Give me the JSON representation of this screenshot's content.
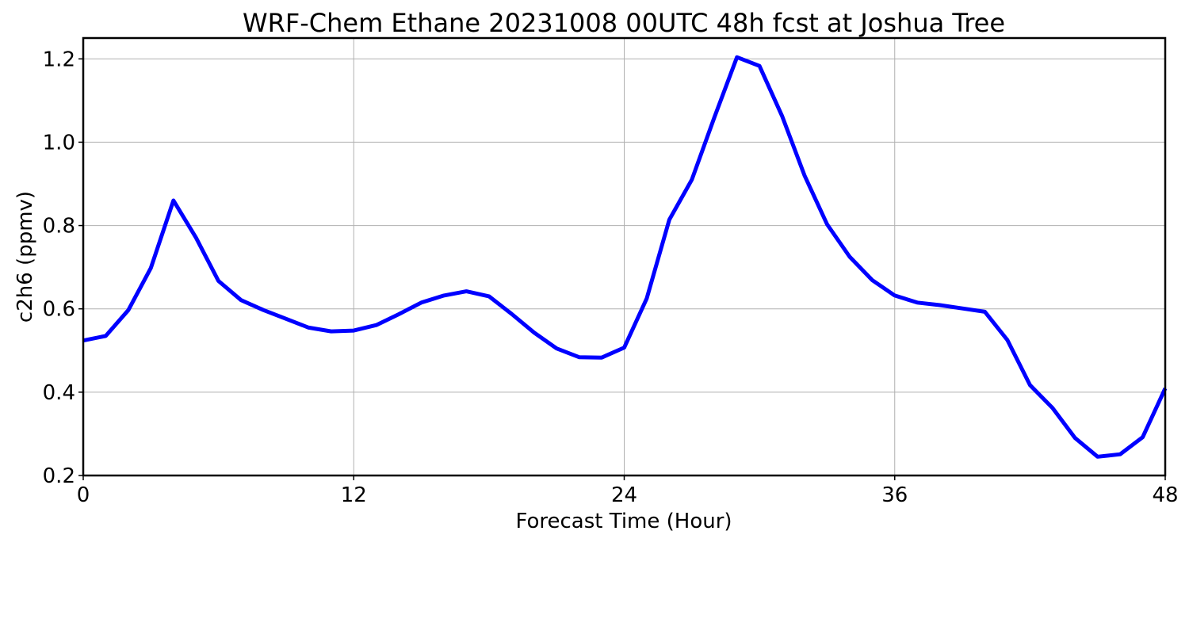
{
  "chart_data": {
    "type": "line",
    "title": "WRF-Chem Ethane  20231008 00UTC 48h fcst at Joshua Tree",
    "xlabel": "Forecast Time (Hour)",
    "ylabel": "c2h6  (ppmv)",
    "xlim": [
      0,
      48
    ],
    "ylim": [
      0.2,
      1.25
    ],
    "xticks": [
      0,
      12,
      24,
      36,
      48
    ],
    "yticks": [
      0.2,
      0.4,
      0.6,
      0.8,
      1.0,
      1.2
    ],
    "xtick_labels": [
      "0",
      "12",
      "24",
      "36",
      "48"
    ],
    "ytick_labels": [
      "0.2",
      "0.4",
      "0.6",
      "0.8",
      "1.0",
      "1.2"
    ],
    "grid": true,
    "color": "#0000ff",
    "series": [
      {
        "x": [
          0,
          1,
          2,
          3,
          4,
          5,
          6,
          7,
          8,
          9,
          10,
          11,
          12,
          13,
          14,
          15,
          16,
          17,
          18,
          19,
          20,
          21,
          22,
          23,
          24,
          25,
          26,
          27,
          28,
          29,
          30,
          31,
          32,
          33,
          34,
          35,
          36,
          37,
          38,
          39,
          40,
          41,
          42,
          43,
          44,
          45,
          46,
          47,
          48
        ],
        "values": [
          0.524,
          0.535,
          0.597,
          0.698,
          0.86,
          0.771,
          0.667,
          0.621,
          0.597,
          0.576,
          0.555,
          0.546,
          0.548,
          0.561,
          0.587,
          0.615,
          0.632,
          0.642,
          0.63,
          0.588,
          0.543,
          0.505,
          0.484,
          0.483,
          0.507,
          0.625,
          0.814,
          0.91,
          1.06,
          1.204,
          1.183,
          1.063,
          0.92,
          0.803,
          0.725,
          0.669,
          0.632,
          0.615,
          0.609,
          0.601,
          0.593,
          0.525,
          0.417,
          0.362,
          0.29,
          0.245,
          0.251,
          0.292,
          0.409
        ]
      }
    ]
  }
}
